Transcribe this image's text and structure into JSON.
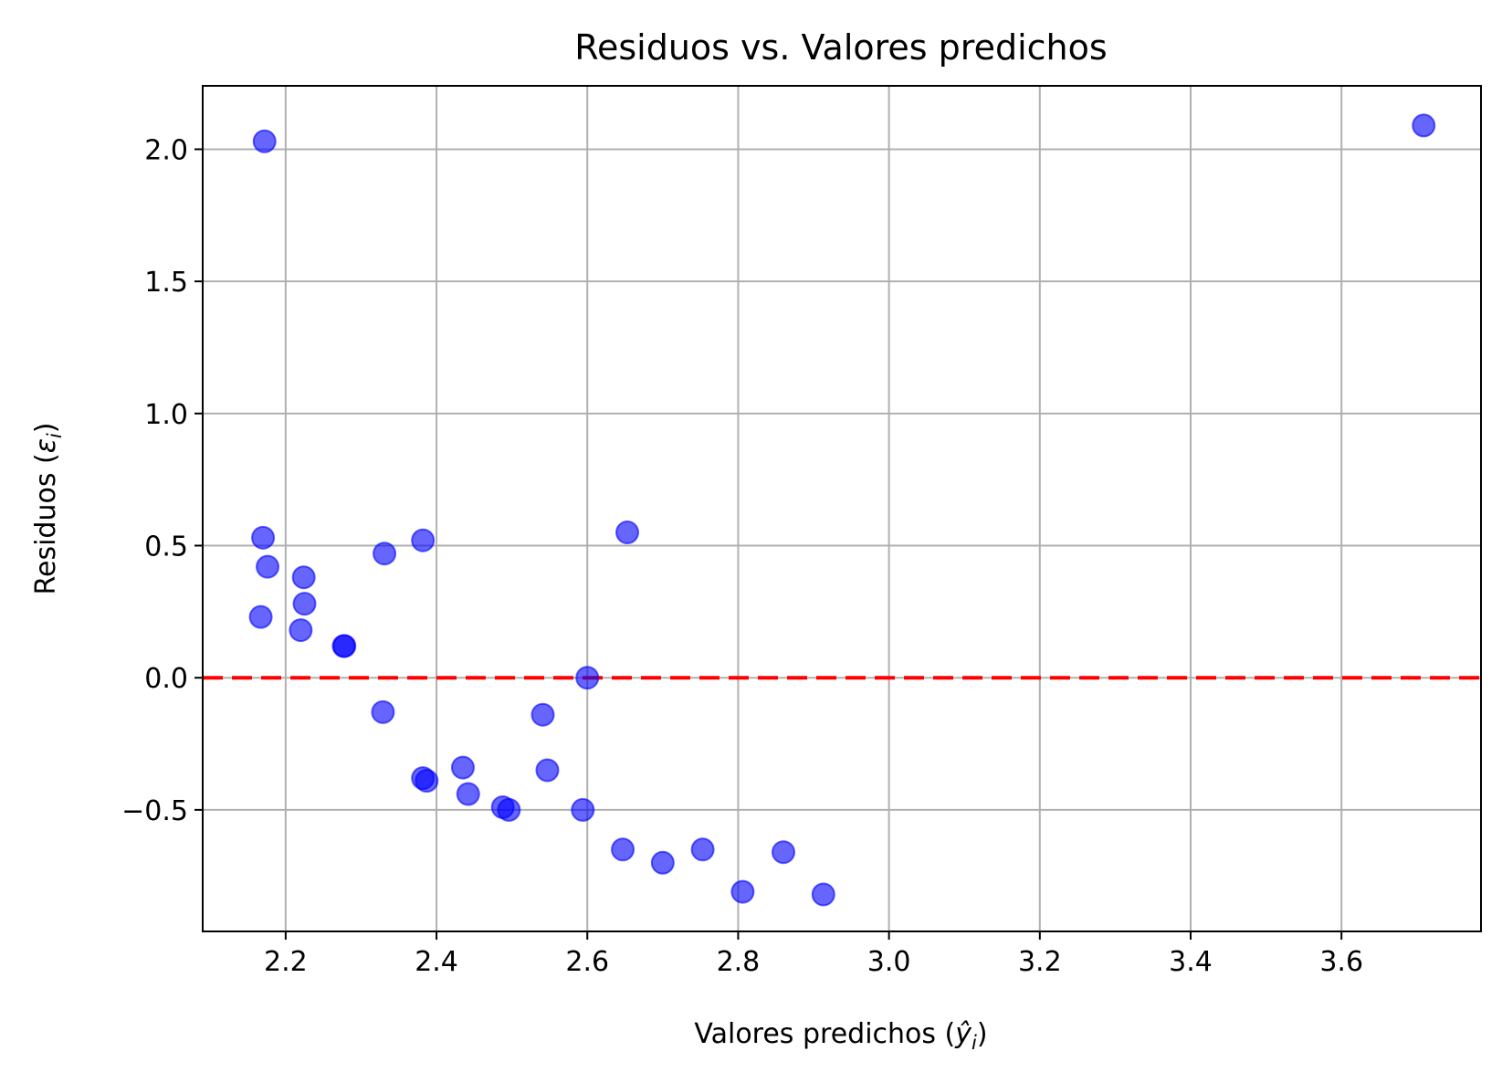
{
  "chart_data": {
    "type": "scatter",
    "title": "Residuos vs. Valores predichos",
    "xlabel_text": "Valores predichos (",
    "xlabel_math_base": "ŷ",
    "xlabel_math_sub": "i",
    "xlabel_close": ")",
    "ylabel_text": "Residuos (",
    "ylabel_math_base": "ε",
    "ylabel_math_sub": "i",
    "ylabel_close": ")",
    "xlim": [
      2.09,
      3.785
    ],
    "ylim": [
      -0.96,
      2.24
    ],
    "xticks": [
      2.2,
      2.4,
      2.6,
      2.8,
      3.0,
      3.2,
      3.4,
      3.6
    ],
    "xtick_labels": [
      "2.2",
      "2.4",
      "2.6",
      "2.8",
      "3.0",
      "3.2",
      "3.4",
      "3.6"
    ],
    "yticks": [
      -0.5,
      0.0,
      0.5,
      1.0,
      1.5,
      2.0
    ],
    "ytick_labels": [
      "−0.5",
      "0.0",
      "0.5",
      "1.0",
      "1.5",
      "2.0"
    ],
    "grid": true,
    "point_color": "#0000ff",
    "point_opacity": 0.6,
    "reference_line": {
      "y": 0.0,
      "color": "#ff0000",
      "style": "dashed"
    },
    "points": [
      {
        "x": 2.172,
        "y": 2.03
      },
      {
        "x": 3.709,
        "y": 2.09
      },
      {
        "x": 2.17,
        "y": 0.53
      },
      {
        "x": 2.176,
        "y": 0.42
      },
      {
        "x": 2.167,
        "y": 0.23
      },
      {
        "x": 2.224,
        "y": 0.38
      },
      {
        "x": 2.225,
        "y": 0.28
      },
      {
        "x": 2.22,
        "y": 0.18
      },
      {
        "x": 2.277,
        "y": 0.12
      },
      {
        "x": 2.278,
        "y": 0.12
      },
      {
        "x": 2.331,
        "y": 0.47
      },
      {
        "x": 2.382,
        "y": 0.52
      },
      {
        "x": 2.653,
        "y": 0.55
      },
      {
        "x": 2.6,
        "y": 0.0
      },
      {
        "x": 2.329,
        "y": -0.13
      },
      {
        "x": 2.541,
        "y": -0.14
      },
      {
        "x": 2.435,
        "y": -0.34
      },
      {
        "x": 2.547,
        "y": -0.35
      },
      {
        "x": 2.382,
        "y": -0.38
      },
      {
        "x": 2.387,
        "y": -0.39
      },
      {
        "x": 2.442,
        "y": -0.44
      },
      {
        "x": 2.488,
        "y": -0.49
      },
      {
        "x": 2.496,
        "y": -0.5
      },
      {
        "x": 2.594,
        "y": -0.5
      },
      {
        "x": 2.647,
        "y": -0.65
      },
      {
        "x": 2.7,
        "y": -0.7
      },
      {
        "x": 2.753,
        "y": -0.65
      },
      {
        "x": 2.806,
        "y": -0.81
      },
      {
        "x": 2.86,
        "y": -0.66
      },
      {
        "x": 2.913,
        "y": -0.82
      }
    ]
  }
}
